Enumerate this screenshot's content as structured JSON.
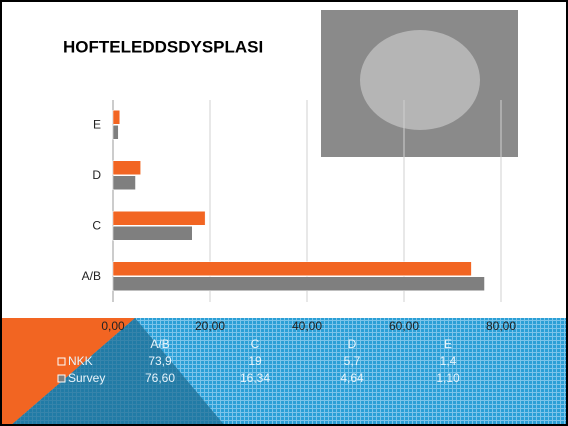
{
  "chart_data": {
    "type": "bar",
    "orientation": "horizontal",
    "title": "HOFTELEDDSDYSPLASI",
    "categories": [
      "A/B",
      "C",
      "D",
      "E"
    ],
    "series": [
      {
        "name": "NKK",
        "color": "#f26522",
        "values": [
          73.9,
          19,
          5.7,
          1.4
        ],
        "value_labels": [
          "73,9",
          "19",
          "5,7",
          "1,4"
        ]
      },
      {
        "name": "Survey",
        "color": "#7f7f7f",
        "values": [
          76.6,
          16.34,
          4.64,
          1.1
        ],
        "value_labels": [
          "76,60",
          "16,34",
          "4,64",
          "1,10"
        ]
      }
    ],
    "xlim": [
      0,
      80
    ],
    "xticks": [
      {
        "value": 0,
        "label": "0,00"
      },
      {
        "value": 20,
        "label": "20,00"
      },
      {
        "value": 40,
        "label": "40,00"
      },
      {
        "value": 60,
        "label": "60,00"
      },
      {
        "value": 80,
        "label": "80,00"
      }
    ],
    "grid": true
  }
}
